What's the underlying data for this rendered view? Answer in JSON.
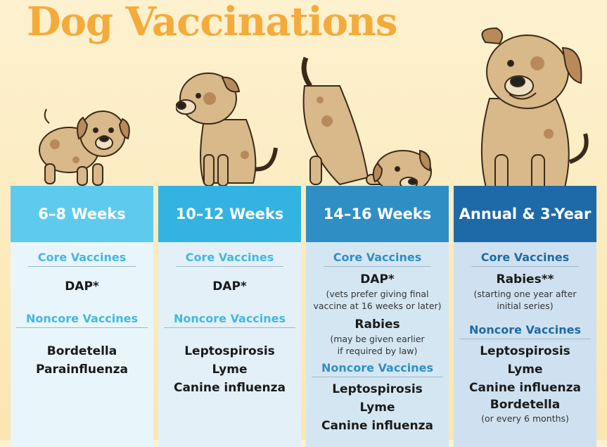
{
  "title": "Dog Vaccinations",
  "columns": [
    {
      "header": "6–8 Weeks",
      "core_label": "Core Vaccines",
      "core": "DAP*",
      "noncore_label": "Noncore Vaccines",
      "noncore": [
        "Bordetella",
        "Parainfluenza"
      ]
    },
    {
      "header": "10–12 Weeks",
      "core_label": "Core Vaccines",
      "core": "DAP*",
      "noncore_label": "Noncore Vaccines",
      "noncore": [
        "Leptospirosis",
        "Lyme",
        "Canine influenza"
      ]
    },
    {
      "header": "14–16 Weeks",
      "core_label": "Core Vaccines",
      "core": "DAP*",
      "core_note": [
        "(vets prefer giving final",
        "vaccine at 16 weeks or later)"
      ],
      "core2": "Rabies",
      "core2_note": [
        "(may be given earlier",
        "if required by law)"
      ],
      "noncore_label": "Noncore Vaccines",
      "noncore": [
        "Leptospirosis",
        "Lyme",
        "Canine influenza"
      ]
    },
    {
      "header": "Annual & 3-Year",
      "core_label": "Core Vaccines",
      "core": "Rabies**",
      "core_note": [
        "(starting one year after",
        "initial series)"
      ],
      "noncore_label": "Noncore Vaccines",
      "noncore": [
        "Leptospirosis",
        "Lyme",
        "Canine influenza",
        "Bordetella"
      ],
      "noncore_note": "(or every 6 months)"
    }
  ],
  "colors": {
    "title": "#f4ab3a",
    "header_1": "#5ecbee",
    "header_2": "#33b3e2",
    "header_3": "#2f8fc4",
    "header_4": "#1e6aa8",
    "dog_fur": "#d9b889",
    "dog_spots": "#b88a5a"
  }
}
